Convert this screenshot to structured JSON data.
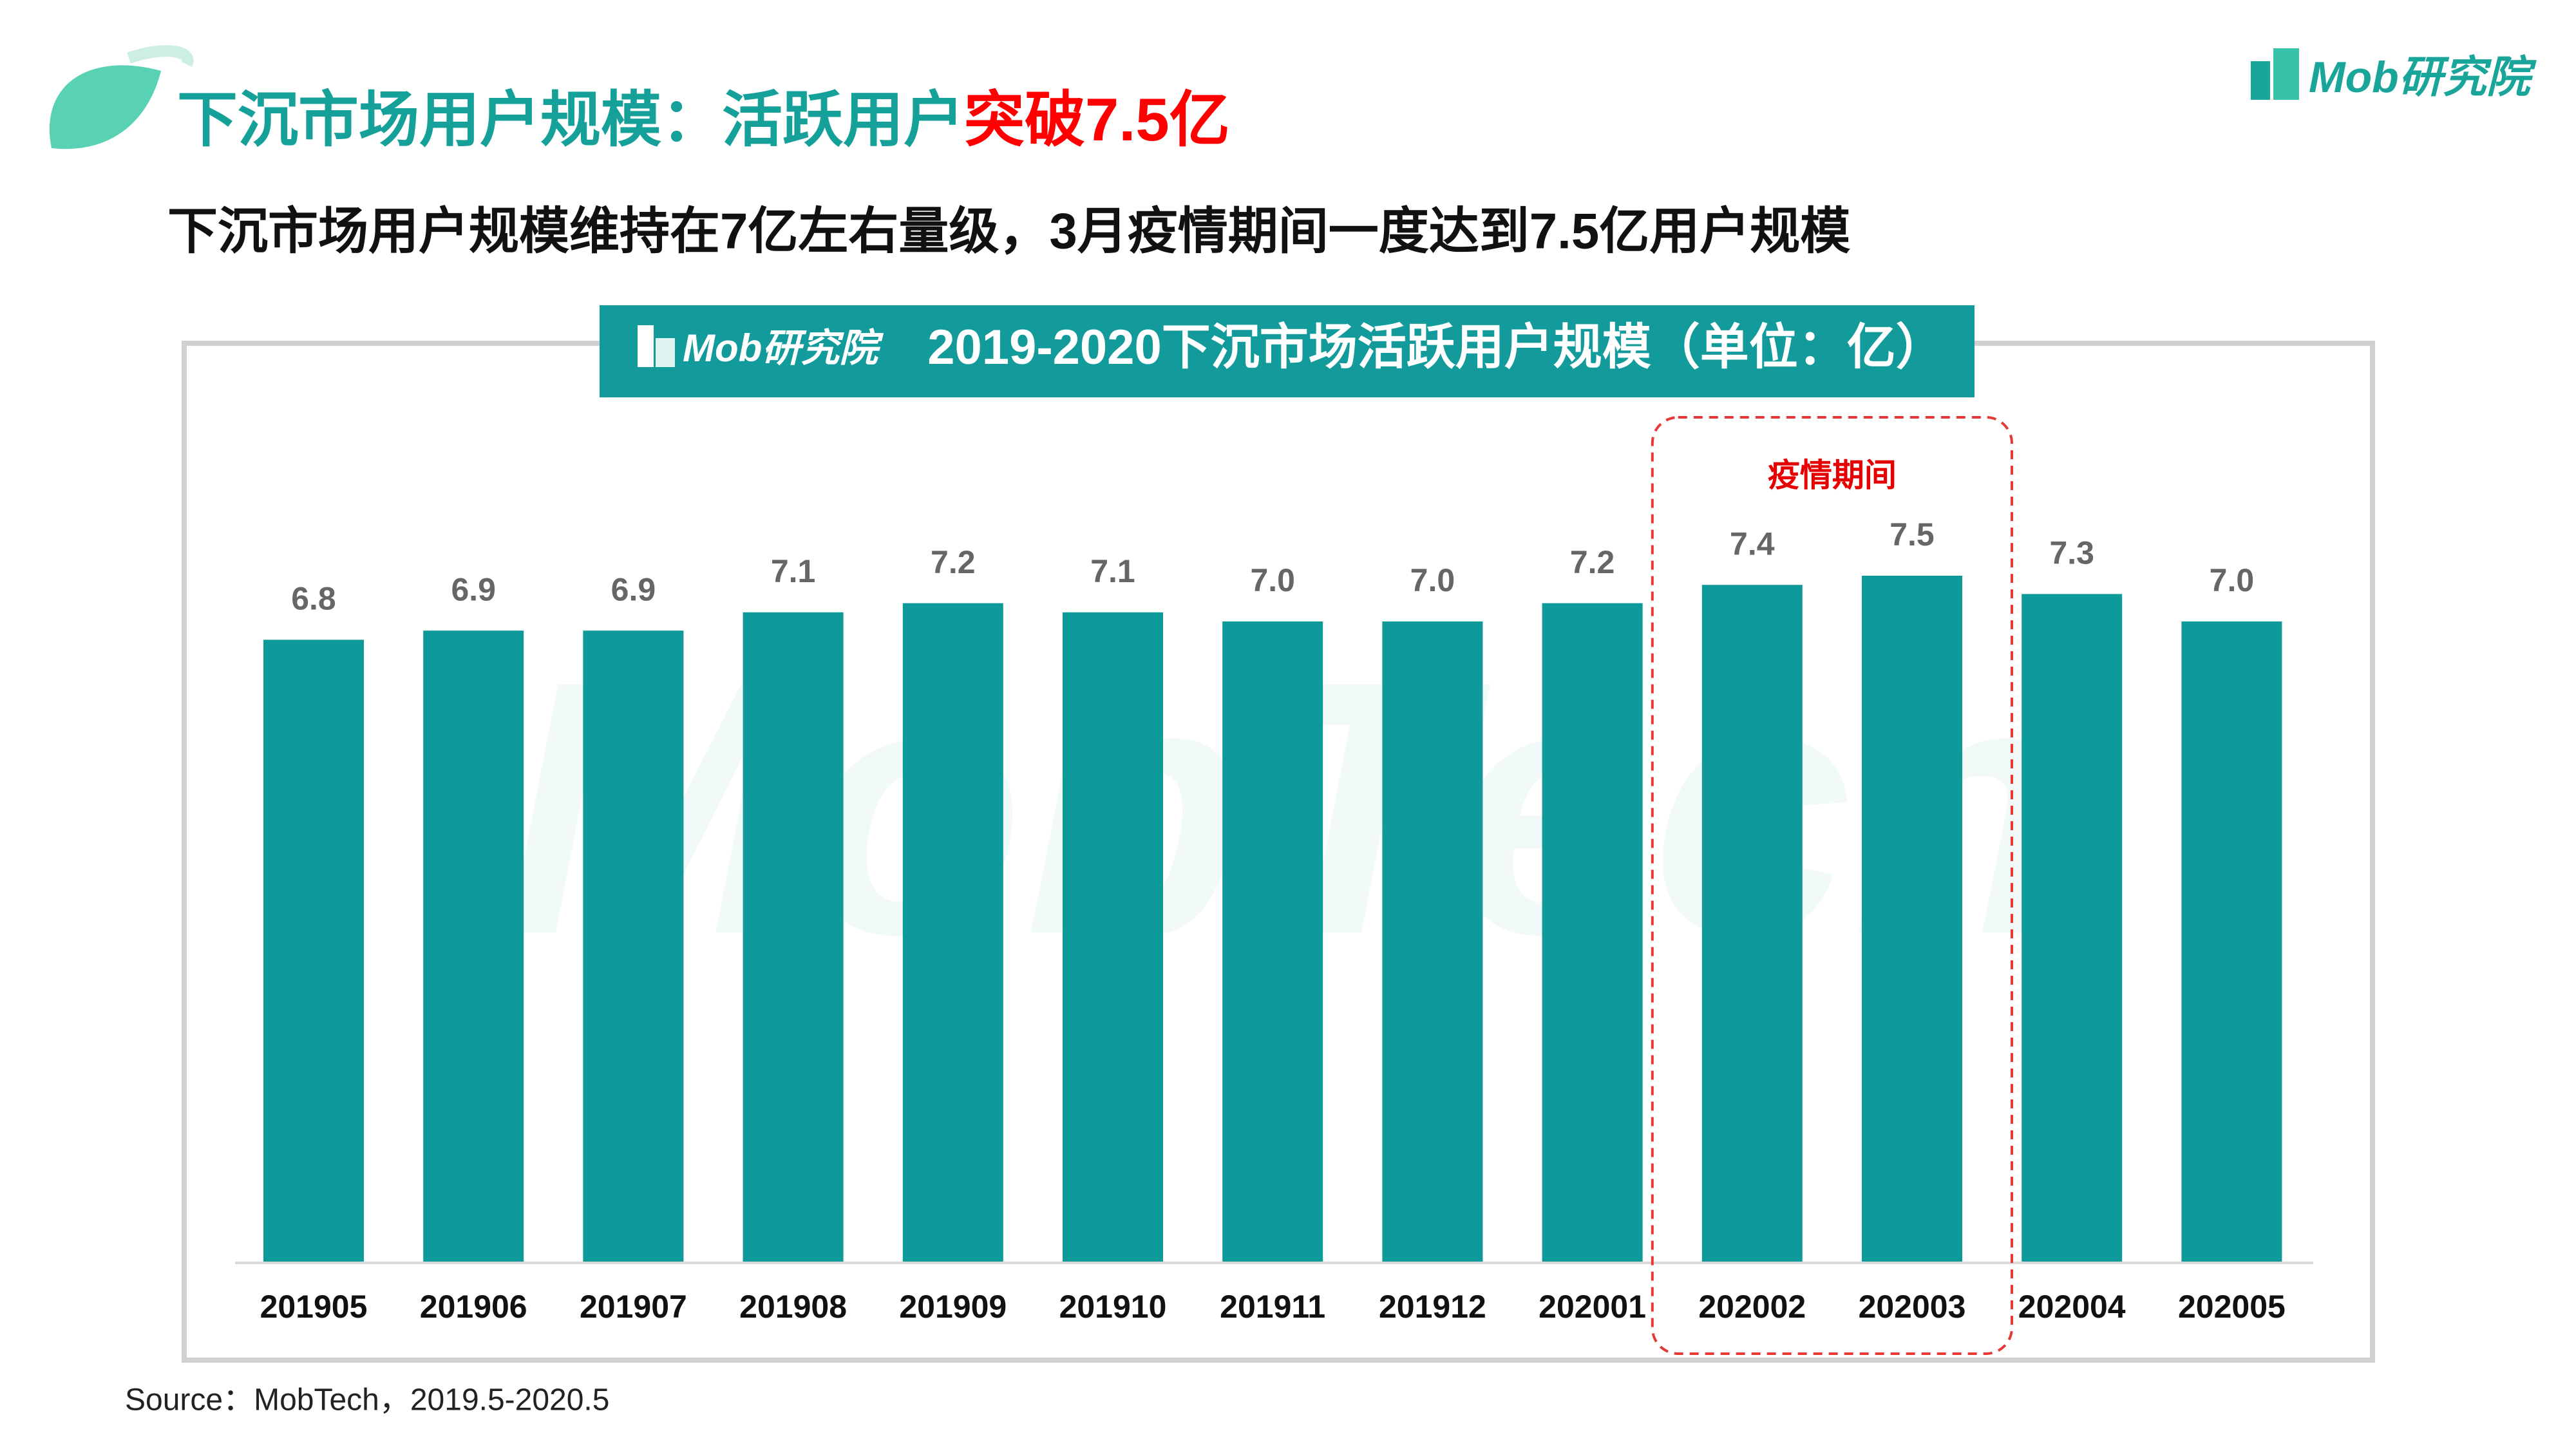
{
  "header": {
    "title": "下沉市场用户规模：活跃用户",
    "title_highlight": "突破7.5亿",
    "subtitle": "下沉市场用户规模维持在7亿左右量级，3月疫情期间一度达到7.5亿用户规模",
    "logo": "Mob研究院"
  },
  "chart_data": {
    "type": "bar",
    "title": "2019-2020下沉市场活跃用户规模（单位：亿）",
    "categories": [
      "201905",
      "201906",
      "201907",
      "201908",
      "201909",
      "201910",
      "201911",
      "201912",
      "202001",
      "202002",
      "202003",
      "202004",
      "202005"
    ],
    "values": [
      6.8,
      6.9,
      6.9,
      7.1,
      7.2,
      7.1,
      7.0,
      7.0,
      7.2,
      7.4,
      7.5,
      7.3,
      7.0
    ],
    "value_labels": [
      "6.8",
      "6.9",
      "6.9",
      "7.1",
      "7.2",
      "7.1",
      "7.0",
      "7.0",
      "7.2",
      "7.4",
      "7.5",
      "7.3",
      "7.0"
    ],
    "color": "#0e9a9a",
    "annotation": {
      "text": "疫情期间",
      "categories": [
        "202002",
        "202003"
      ]
    },
    "watermark": "MobTech"
  },
  "source": "Source：MobTech，2019.5-2020.5"
}
